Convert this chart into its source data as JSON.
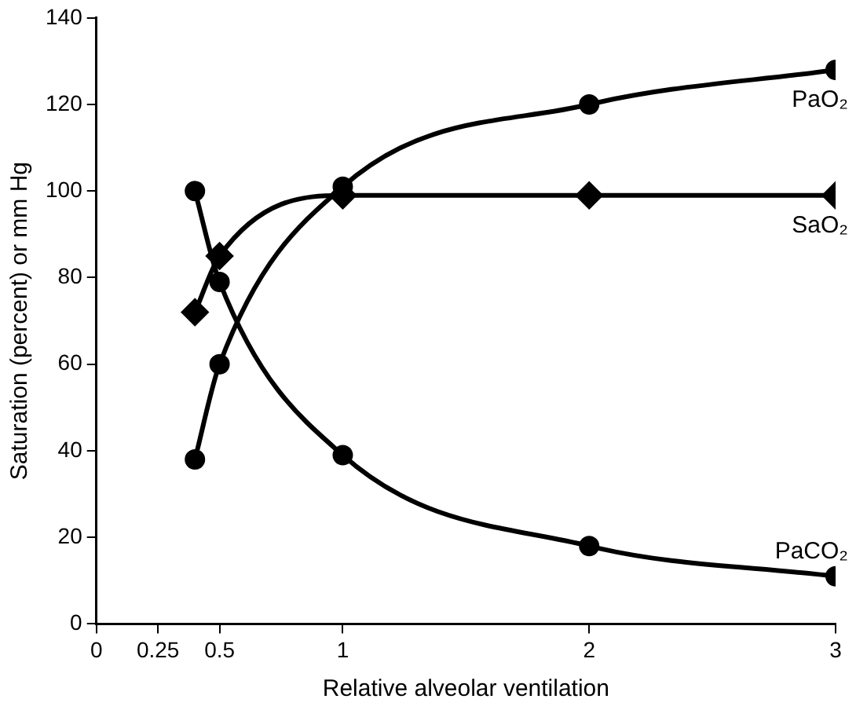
{
  "chart_data": {
    "type": "line",
    "xlabel": "Relative alveolar ventilation",
    "ylabel": "Saturation (percent) or mm Hg",
    "x": [
      0.4,
      0.5,
      1,
      2,
      3
    ],
    "series": [
      {
        "name": "PaO₂",
        "color": "#000000",
        "values": [
          38,
          60,
          101,
          120,
          128
        ],
        "marker": "circle"
      },
      {
        "name": "SaO₂",
        "color": "#000000",
        "values": [
          72,
          85,
          99,
          99,
          99
        ],
        "marker": "diamond"
      },
      {
        "name": "PaCO₂",
        "color": "#000000",
        "values": [
          100,
          79,
          39,
          18,
          11
        ],
        "marker": "circle"
      }
    ],
    "xlim": [
      0,
      3
    ],
    "xticks": [
      0,
      0.25,
      0.5,
      1,
      2,
      3
    ],
    "ylim": [
      0,
      140
    ],
    "yticks": [
      0,
      20,
      40,
      60,
      80,
      100,
      120,
      140
    ],
    "grid": false,
    "legend": false,
    "line_style": "solid"
  }
}
